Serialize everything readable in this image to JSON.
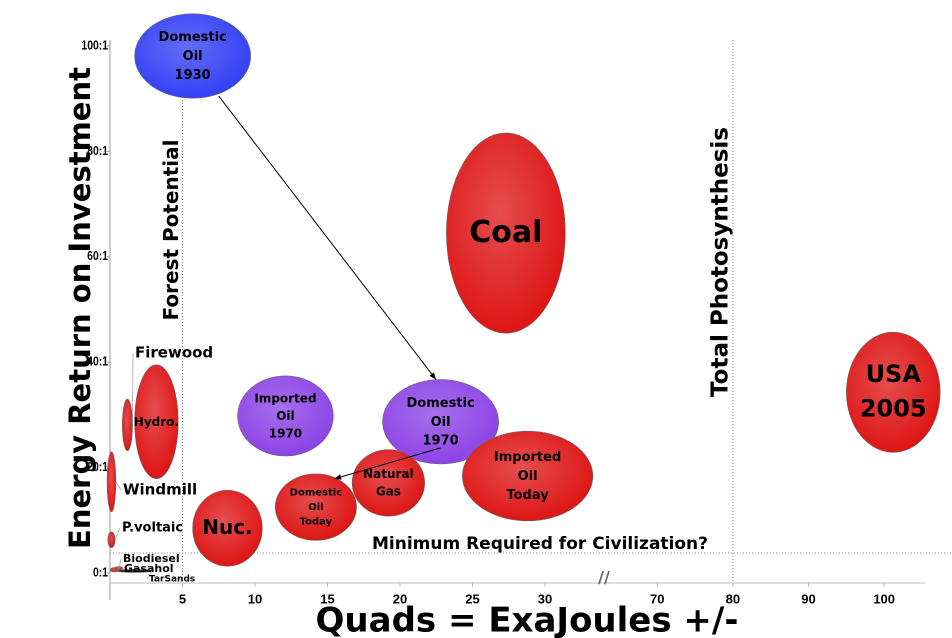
{
  "chart_data": {
    "type": "bubble",
    "y_label": "Energy Return on Investment",
    "x_label": "Quads = ExaJoules +/-",
    "xlim": [
      0,
      105
    ],
    "xbreak": [
      32,
      66
    ],
    "xticks": [
      5,
      10,
      15,
      20,
      25,
      30,
      70,
      80,
      90,
      100
    ],
    "ylim": [
      0,
      100
    ],
    "yticks": [
      {
        "value": 0,
        "label": "0:1"
      },
      {
        "value": 20,
        "label": "20:1"
      },
      {
        "value": 40,
        "label": "40:1"
      },
      {
        "value": 60,
        "label": "60:1"
      },
      {
        "value": 80,
        "label": "80:1"
      },
      {
        "value": 100,
        "label": "100:1"
      }
    ],
    "reference_lines": [
      {
        "text": "Forest Potential",
        "x": 5
      },
      {
        "text": "Total Photosynthesis",
        "x": 80
      },
      {
        "text": "Minimum Required for Civilization?",
        "y": 3.8
      }
    ],
    "bubbles": [
      {
        "label": "Domestic Oil 1930",
        "x": 5.7,
        "xerr": 4.0,
        "y": 98.1,
        "yerr": 8.0,
        "color": "#2f3cf5"
      },
      {
        "label": "Coal",
        "x": 27.3,
        "xerr": 4.1,
        "y": 64.5,
        "yerr": 19.0,
        "color": "#dd1111"
      },
      {
        "label": "USA 2005",
        "x": 101.2,
        "xerr": 6.2,
        "y": 34.3,
        "yerr": 11.4,
        "color": "#dd1111"
      },
      {
        "label": "Imported Oil 1970",
        "x": 12.1,
        "xerr": 3.3,
        "y": 29.8,
        "yerr": 7.6,
        "color": "#8a3fe6"
      },
      {
        "label": "Domestic Oil 1970",
        "x": 22.8,
        "xerr": 4.0,
        "y": 28.7,
        "yerr": 8.0,
        "color": "#8a3fe6"
      },
      {
        "label": "Hydro.",
        "x": 3.2,
        "xerr": 1.5,
        "y": 28.7,
        "yerr": 10.8,
        "color": "#dd1111"
      },
      {
        "label": "Firewood",
        "x": 1.2,
        "xerr": 0.35,
        "y": 28.1,
        "yerr": 4.9,
        "color": "#dd1111"
      },
      {
        "label": "Imported Oil Today",
        "x": 28.8,
        "xerr": 4.5,
        "y": 18.4,
        "yerr": 8.5,
        "color": "#dd1111"
      },
      {
        "label": "Natural Gas",
        "x": 19.2,
        "xerr": 2.5,
        "y": 17.1,
        "yerr": 6.3,
        "color": "#dd1111"
      },
      {
        "label": "Domestic Oil Today",
        "x": 14.2,
        "xerr": 2.8,
        "y": 12.5,
        "yerr": 6.3,
        "color": "#dd1111"
      },
      {
        "label": "Nuc.",
        "x": 8.1,
        "xerr": 2.4,
        "y": 8.5,
        "yerr": 7.2,
        "color": "#dd1111"
      },
      {
        "label": "Windmill",
        "x": 0.1,
        "xerr": 0.3,
        "y": 17.3,
        "yerr": 5.7,
        "color": "#dd1111"
      },
      {
        "label": "P.voltaic",
        "x": 0.1,
        "xerr": 0.25,
        "y": 6.3,
        "yerr": 1.5,
        "color": "#dd1111"
      },
      {
        "label": "Biodiesel",
        "x": 0.3,
        "xerr": 0.3,
        "y": 0.6,
        "yerr": 0.4,
        "color": "#dd1111"
      },
      {
        "label": "Gasahol",
        "x": 0.6,
        "xerr": 0.3,
        "y": 0.9,
        "yerr": 0.3,
        "color": "#dd1111"
      },
      {
        "label": "TarSands",
        "x": 1.7,
        "xerr": 1.2,
        "y": 0.4,
        "yerr": 0.2,
        "color": "#000000"
      }
    ]
  }
}
